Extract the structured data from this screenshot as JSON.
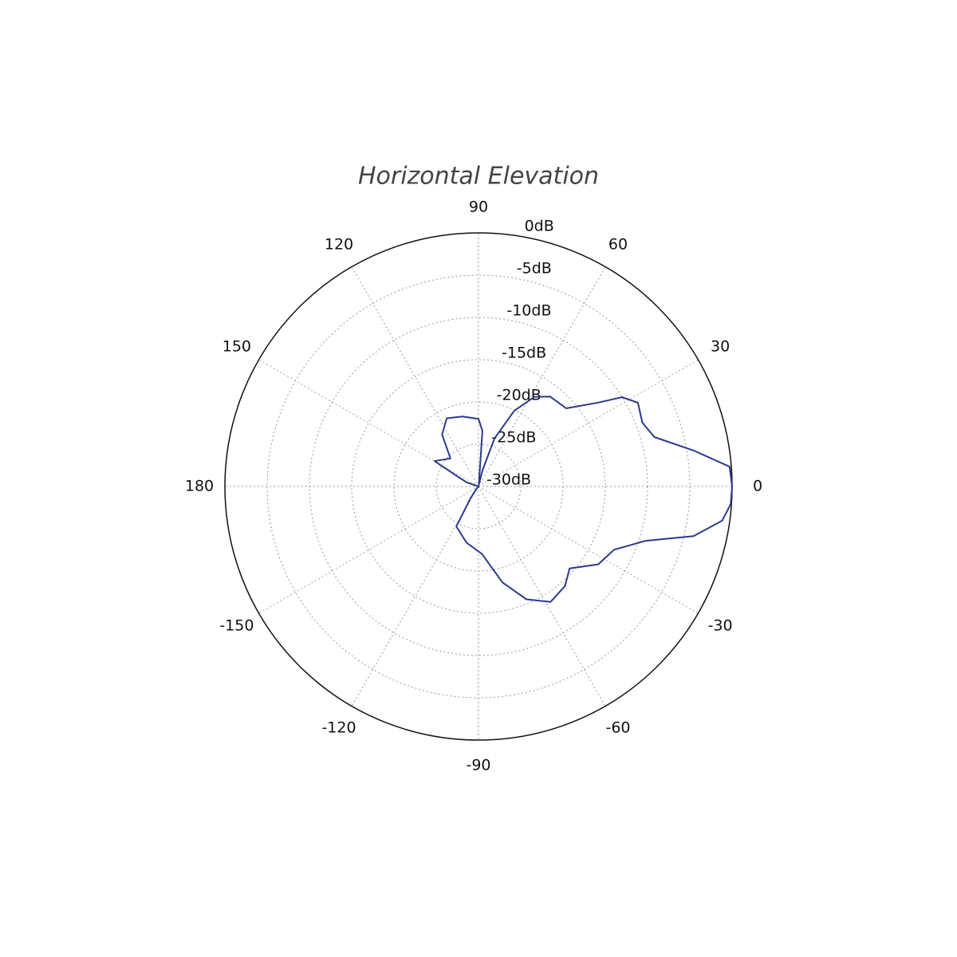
{
  "chart_data": {
    "type": "polar",
    "title": "Horizontal Elevation",
    "x": [
      -180,
      -150,
      -130,
      -124,
      -119,
      -102,
      -87,
      -76,
      -67,
      -58,
      -49,
      -42,
      -33,
      -25,
      -18,
      -13,
      -8,
      -4,
      0,
      4.5,
      9.5,
      15.7,
      21.3,
      27.7,
      31.9,
      35,
      41.7,
      51.5,
      58,
      64.7,
      71.6,
      76,
      80,
      86,
      90,
      103,
      115,
      125,
      135,
      150,
      151,
      161,
      170,
      180
    ],
    "values": [
      -30,
      -30,
      -29.5,
      -28.3,
      -24.6,
      -23.2,
      -22,
      -18.3,
      -15.5,
      -13.9,
      -14.4,
      -15.5,
      -13.1,
      -12.3,
      -9.2,
      -3.9,
      -0.9,
      -0.1,
      0,
      -0.2,
      -4.2,
      -8.4,
      -9.2,
      -8.7,
      -10,
      -12.7,
      -16.1,
      -16.4,
      -17.5,
      -20.1,
      -24,
      -28,
      -29.8,
      -23.4,
      -22,
      -21.5,
      -21.1,
      -22.5,
      -25.3,
      -24,
      -25.2,
      -28.5,
      -30,
      -30
    ],
    "color": "#2b3a8c",
    "rlim": [
      -30,
      0
    ],
    "rticks": [
      {
        "value": 0,
        "label": "0dB"
      },
      {
        "value": -5,
        "label": "-5dB"
      },
      {
        "value": -10,
        "label": "-10dB"
      },
      {
        "value": -15,
        "label": "-15dB"
      },
      {
        "value": -20,
        "label": "-20dB"
      },
      {
        "value": -25,
        "label": "-25dB"
      },
      {
        "value": -30,
        "label": "-30dB"
      }
    ],
    "thetaticks": [
      0,
      30,
      60,
      90,
      120,
      150,
      180,
      -150,
      -120,
      -90,
      -60,
      -30
    ],
    "grid": true
  }
}
